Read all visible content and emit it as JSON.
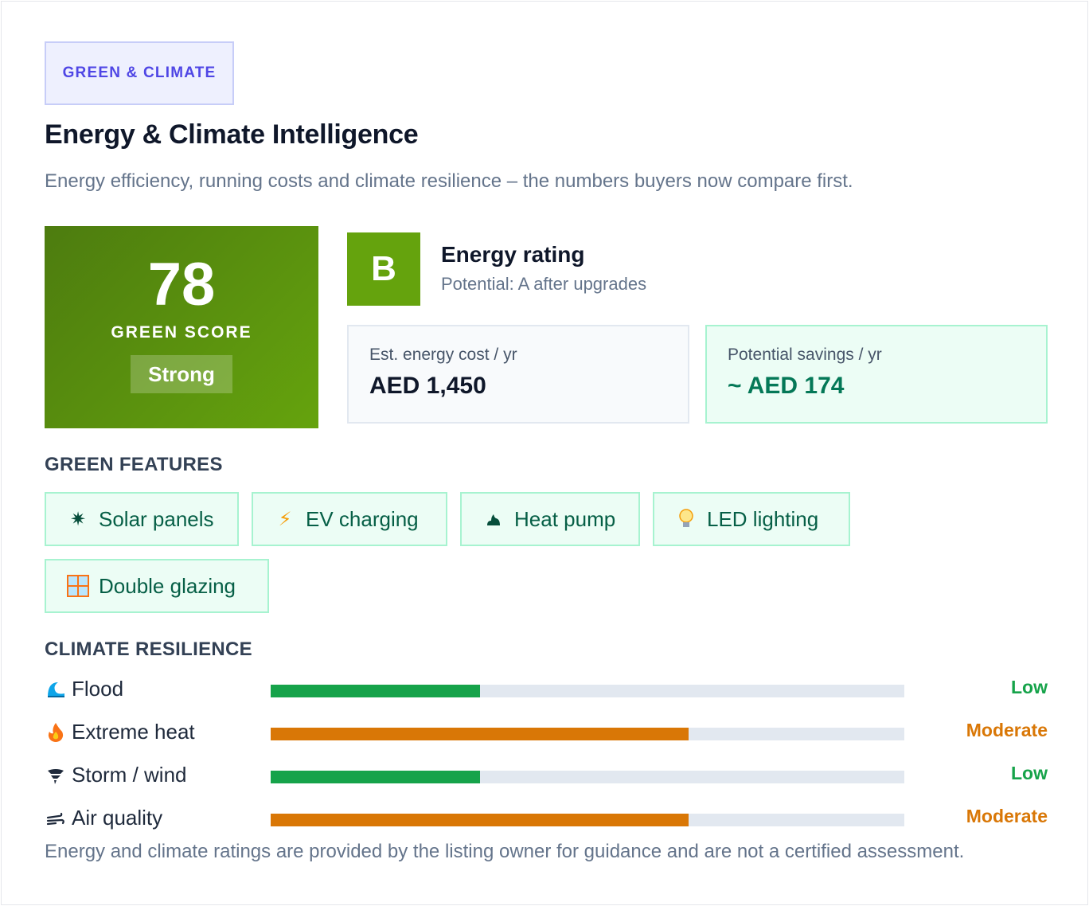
{
  "header": {
    "eyebrow": "GREEN & CLIMATE",
    "title": "Energy & Climate Intelligence",
    "subtitle": "Energy efficiency, running costs and climate resilience – the numbers buyers now compare first."
  },
  "score": {
    "value": "78",
    "label": "GREEN SCORE",
    "chip": "Strong"
  },
  "rating": {
    "grade": "B",
    "title": "Energy rating",
    "potential": "Potential: A after upgrades"
  },
  "stats": {
    "cost_label": "Est. energy cost / yr",
    "cost_value": "AED 1,450",
    "savings_label": "Potential savings / yr",
    "savings_value": "~ AED 174"
  },
  "features": {
    "heading": "GREEN FEATURES",
    "items": [
      {
        "label": "Solar panels",
        "icon": "sun-icon"
      },
      {
        "label": "EV charging",
        "icon": "lightning-icon"
      },
      {
        "label": "Heat pump",
        "icon": "heat-pump-icon"
      },
      {
        "label": "LED lighting",
        "icon": "lightbulb-icon"
      },
      {
        "label": "Double glazing",
        "icon": "window-icon"
      }
    ]
  },
  "resilience": {
    "heading": "CLIMATE RESILIENCE",
    "items": [
      {
        "label": "Flood",
        "icon": "wave-icon",
        "level": "Low",
        "fraction": 0.33
      },
      {
        "label": "Extreme heat",
        "icon": "fire-icon",
        "level": "Moderate",
        "fraction": 0.66
      },
      {
        "label": "Storm / wind",
        "icon": "tornado-icon",
        "level": "Low",
        "fraction": 0.33
      },
      {
        "label": "Air quality",
        "icon": "wind-icon",
        "level": "Moderate",
        "fraction": 0.66
      }
    ]
  },
  "colors": {
    "low": "#16a34a",
    "moderate": "#d97706",
    "low_text": "#16a34a",
    "moderate_text": "#d97706"
  },
  "footnote": "Energy and climate ratings are provided by the listing owner for guidance and are not a certified assessment."
}
